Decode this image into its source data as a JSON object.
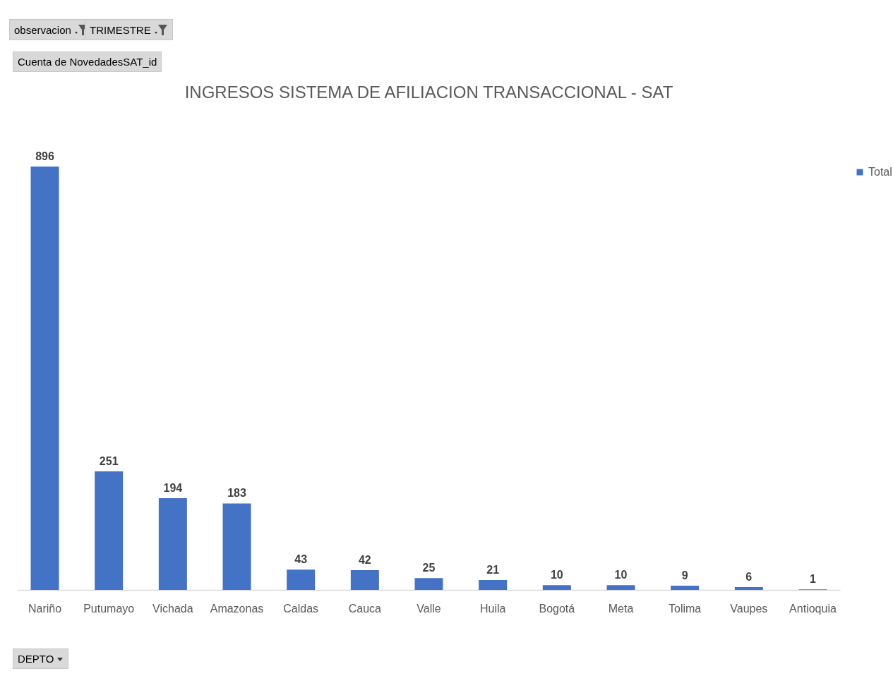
{
  "chart_data": {
    "type": "bar",
    "title": "INGRESOS SISTEMA DE AFILIACION TRANSACCIONAL - SAT",
    "annotations": [
      "observacion",
      "TRIMESTRE",
      "Cuenta de NovedadesSAT_id",
      "DEPTO"
    ],
    "categories": [
      "Nariño",
      "Putumayo",
      "Vichada",
      "Amazonas",
      "Caldas",
      "Cauca",
      "Valle",
      "Huila",
      "Bogotá",
      "Meta",
      "Tolima",
      "Vaupes",
      "Antioquia"
    ],
    "series": [
      {
        "name": "Total",
        "color": "#4472c4",
        "values": [
          896,
          251,
          194,
          183,
          43,
          42,
          25,
          21,
          10,
          10,
          9,
          6,
          1
        ]
      }
    ],
    "data_labels": true,
    "legend": "right",
    "grid": false
  }
}
